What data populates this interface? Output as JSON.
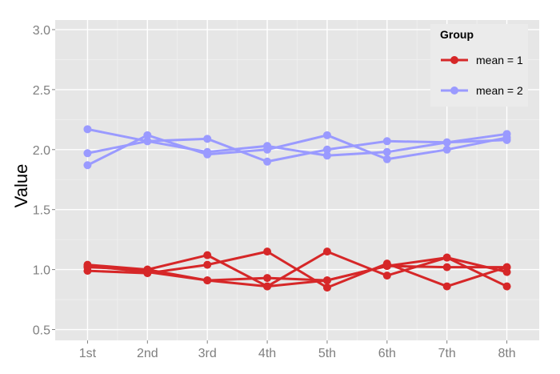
{
  "chart_data": {
    "type": "line",
    "title": "",
    "xlabel": "",
    "ylabel": "Value",
    "categories": [
      "1st",
      "2nd",
      "3rd",
      "4th",
      "5th",
      "6th",
      "7th",
      "8th"
    ],
    "yticks": [
      "0.5",
      "1.0",
      "1.5",
      "2.0",
      "2.5",
      "3.0"
    ],
    "ylim": [
      0.41,
      3.08
    ],
    "grid": true,
    "legend": {
      "title": "Group",
      "position": "top-right",
      "entries": [
        {
          "label": "mean = 1",
          "color": "#d62728"
        },
        {
          "label": "mean = 2",
          "color": "#9a9aff"
        }
      ]
    },
    "series": [
      {
        "group": "mean = 1",
        "color": "#d62728",
        "values": [
          1.04,
          1.0,
          1.12,
          0.86,
          1.15,
          0.95,
          1.1,
          0.98
        ]
      },
      {
        "group": "mean = 1",
        "color": "#d62728",
        "values": [
          1.02,
          1.0,
          0.91,
          0.86,
          0.91,
          1.03,
          1.1,
          0.86
        ]
      },
      {
        "group": "mean = 1",
        "color": "#d62728",
        "values": [
          0.99,
          0.97,
          1.04,
          1.15,
          0.85,
          1.05,
          0.86,
          1.02
        ]
      },
      {
        "group": "mean = 1",
        "color": "#d62728",
        "values": [
          1.03,
          0.98,
          0.91,
          0.93,
          0.91,
          1.03,
          1.02,
          1.02
        ]
      },
      {
        "group": "mean = 2",
        "color": "#9a9aff",
        "values": [
          2.17,
          2.07,
          2.09,
          1.9,
          2.0,
          2.07,
          2.06,
          2.13
        ]
      },
      {
        "group": "mean = 2",
        "color": "#9a9aff",
        "values": [
          1.97,
          2.07,
          1.98,
          2.03,
          1.95,
          1.98,
          2.06,
          2.08
        ]
      },
      {
        "group": "mean = 2",
        "color": "#9a9aff",
        "values": [
          1.87,
          2.12,
          1.96,
          2.0,
          2.12,
          1.92,
          2.0,
          2.1
        ]
      }
    ]
  }
}
